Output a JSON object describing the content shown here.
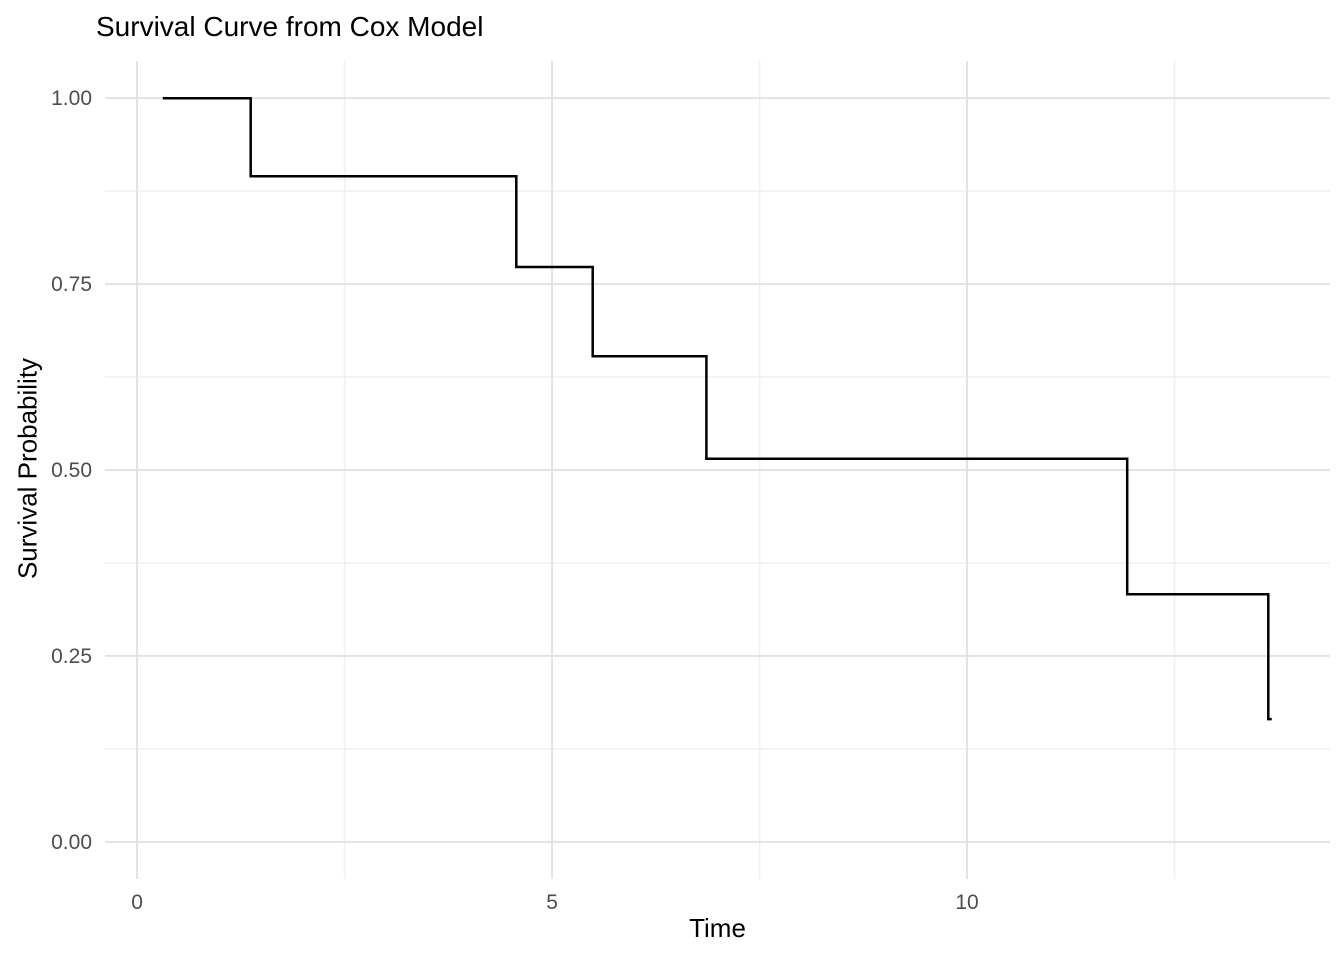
{
  "chart_data": {
    "type": "line",
    "subtype": "step-hv",
    "title": "Survival Curve from Cox Model",
    "xlabel": "Time",
    "ylabel": "Survival Probability",
    "x": [
      0.31,
      1.37,
      4.57,
      5.49,
      6.86,
      11.93,
      13.63,
      13.67
    ],
    "y": [
      1.0,
      0.895,
      0.773,
      0.653,
      0.515,
      0.333,
      0.165,
      0.165
    ],
    "xlim": [
      -0.386,
      14.373
    ],
    "ylim": [
      -0.05,
      1.05
    ],
    "x_ticks": {
      "values": [
        0,
        5,
        10
      ],
      "labels": [
        "0",
        "5",
        "10"
      ]
    },
    "y_ticks": {
      "values": [
        0,
        0.25,
        0.5,
        0.75,
        1.0
      ],
      "labels": [
        "0.00",
        "0.25",
        "0.50",
        "0.75",
        "1.00"
      ]
    },
    "x_minor": [
      2.5,
      7.5,
      12.5
    ],
    "y_minor": [
      0.125,
      0.375,
      0.625,
      0.875
    ],
    "grid": "major+minor",
    "legend": "none",
    "colors": {
      "curve": "#000000",
      "grid_major": "#E3E3E3",
      "grid_minor": "#F0F0F0",
      "tick_label": "#4D4D4D",
      "axis_title": "#000000",
      "title": "#000000",
      "background": "#FFFFFF"
    }
  }
}
